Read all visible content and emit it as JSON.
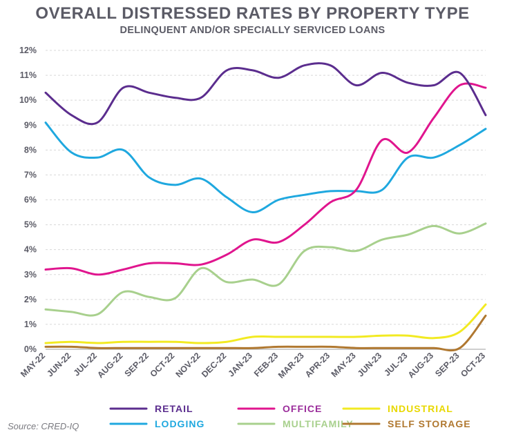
{
  "chart_data": {
    "type": "line",
    "title": "OVERALL DISTRESSED RATES BY PROPERTY TYPE",
    "subtitle": "DELINQUENT AND/OR SPECIALLY SERVICED LOANS",
    "xlabel": "",
    "ylabel": "",
    "ylim": [
      0,
      12
    ],
    "yticks": [
      "0%",
      "1%",
      "2%",
      "3%",
      "4%",
      "5%",
      "6%",
      "7%",
      "8%",
      "9%",
      "10%",
      "11%",
      "12%"
    ],
    "categories": [
      "MAY-22",
      "JUN-22",
      "JUL-22",
      "AUG-22",
      "SEP-22",
      "OCT-22",
      "NOV-22",
      "DEC-22",
      "JAN-23",
      "FEB-23",
      "MAR-23",
      "APR-23",
      "MAY-23",
      "JUN-23",
      "JUL-23",
      "AUG-23",
      "SEP-23",
      "OCT-23"
    ],
    "series": [
      {
        "name": "RETAIL",
        "color": "#5b2d8e",
        "label_color": "#5b2d8e",
        "width": 3,
        "values": [
          10.3,
          9.4,
          9.1,
          10.5,
          10.3,
          10.1,
          10.1,
          11.2,
          11.2,
          10.9,
          11.4,
          11.4,
          10.6,
          11.1,
          10.7,
          10.6,
          11.1,
          9.4
        ]
      },
      {
        "name": "OFFICE",
        "color": "#e0158e",
        "label_color": "#9b2d9b",
        "width": 3,
        "values": [
          3.2,
          3.25,
          3.0,
          3.2,
          3.45,
          3.45,
          3.4,
          3.8,
          4.4,
          4.3,
          5.0,
          5.9,
          6.4,
          8.4,
          7.9,
          9.3,
          10.6,
          10.5
        ]
      },
      {
        "name": "INDUSTRIAL",
        "color": "#f2ea22",
        "label_color": "#e8d800",
        "width": 3,
        "values": [
          0.25,
          0.3,
          0.25,
          0.3,
          0.3,
          0.3,
          0.25,
          0.3,
          0.5,
          0.5,
          0.5,
          0.5,
          0.5,
          0.55,
          0.55,
          0.45,
          0.7,
          1.8
        ]
      },
      {
        "name": "LODGING",
        "color": "#1fa8df",
        "label_color": "#1fa8df",
        "width": 3,
        "values": [
          9.1,
          7.9,
          7.7,
          8.0,
          6.9,
          6.6,
          6.85,
          6.1,
          5.5,
          6.0,
          6.2,
          6.35,
          6.35,
          6.4,
          7.7,
          7.7,
          8.2,
          8.85
        ]
      },
      {
        "name": "MULTIFAMILY",
        "color": "#a8d08d",
        "label_color": "#a8d08d",
        "width": 3,
        "values": [
          1.6,
          1.5,
          1.4,
          2.3,
          2.1,
          2.05,
          3.25,
          2.7,
          2.8,
          2.6,
          3.95,
          4.1,
          3.95,
          4.4,
          4.6,
          4.95,
          4.65,
          5.05
        ]
      },
      {
        "name": "SELF STORAGE",
        "color": "#b07830",
        "label_color": "#b07830",
        "width": 3,
        "values": [
          0.1,
          0.1,
          0.05,
          0.05,
          0.05,
          0.05,
          0.05,
          0.05,
          0.05,
          0.1,
          0.1,
          0.1,
          0.05,
          0.05,
          0.05,
          0.05,
          0.05,
          1.35
        ]
      }
    ],
    "legend_position": "bottom",
    "source": "Source: CRED-IQ"
  }
}
